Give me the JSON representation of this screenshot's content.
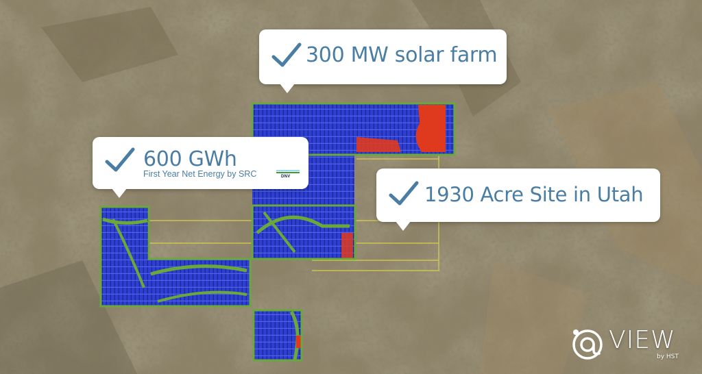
{
  "callouts": {
    "solar": {
      "title": "300 MW solar farm"
    },
    "energy": {
      "title": "600 GWh",
      "subtitle": "First Year Net Energy by SRC",
      "badge": "DNV"
    },
    "site": {
      "title": "1930 Acre Site in Utah"
    }
  },
  "brand": {
    "name": "VIEW",
    "byline": "by HST"
  },
  "colors": {
    "accent": "#4a7da3",
    "panel_array": "#2f3fd0",
    "vegetation_buffer": "#6aa83a",
    "exclusion_zone": "#e03a1e",
    "boundary_line": "#d8d04a"
  },
  "icons": {
    "callout_marker": "check-icon",
    "brand_mark": "at-orbit-logo-icon"
  }
}
